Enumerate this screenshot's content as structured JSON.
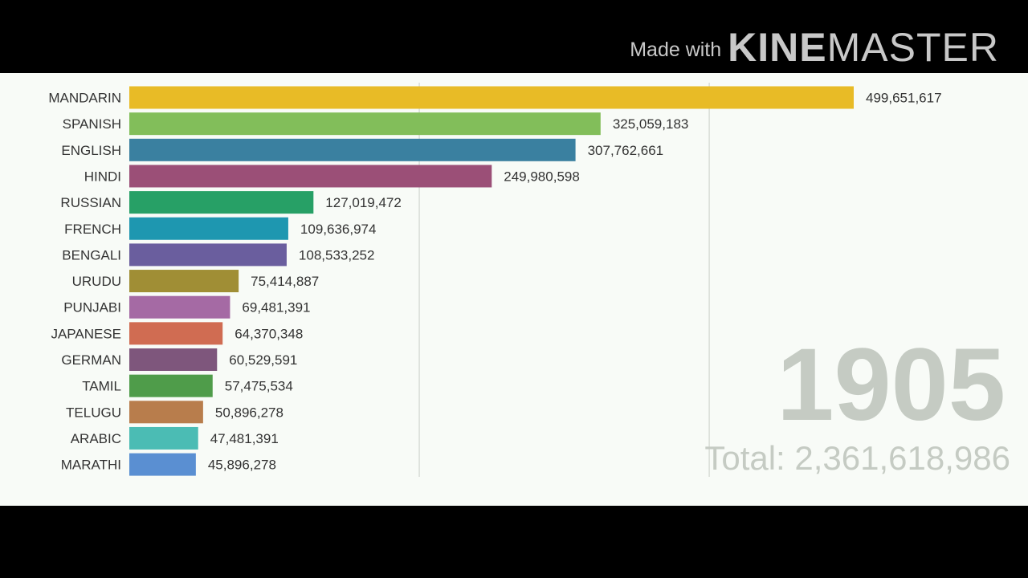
{
  "watermark": {
    "made_with": "Made with",
    "kine": "KINE",
    "master": "MASTER"
  },
  "chart_data": {
    "type": "bar",
    "orientation": "horizontal",
    "year": "1905",
    "total_label": "Total: 2,361,618,986",
    "xlim": [
      0,
      520000000
    ],
    "gridlines": [
      200000000,
      400000000
    ],
    "categories": [
      "MANDARIN",
      "SPANISH",
      "ENGLISH",
      "HINDI",
      "RUSSIAN",
      "FRENCH",
      "BENGALI",
      "URUDU",
      "PUNJABI",
      "JAPANESE",
      "GERMAN",
      "TAMIL",
      "TELUGU",
      "ARABIC",
      "MARATHI"
    ],
    "values": [
      499651617,
      325059183,
      307762661,
      249980598,
      127019472,
      109636974,
      108533252,
      75414887,
      69481391,
      64370348,
      60529591,
      57475534,
      50896278,
      47481391,
      45896278
    ],
    "value_labels": [
      "499,651,617",
      "325,059,183",
      "307,762,661",
      "249,980,598",
      "127,019,472",
      "109,636,974",
      "108,533,252",
      "75,414,887",
      "69,481,391",
      "64,370,348",
      "60,529,591",
      "57,475,534",
      "50,896,278",
      "47,481,391",
      "45,896,278"
    ],
    "colors": [
      "#e8bb26",
      "#82be5a",
      "#3a80a0",
      "#9b4f77",
      "#27a066",
      "#1e97b0",
      "#6a5e9e",
      "#a08e35",
      "#a56aa4",
      "#d06c52",
      "#7e567c",
      "#4f9c4a",
      "#b87d4c",
      "#4bbcb4",
      "#5a8fd2"
    ]
  }
}
